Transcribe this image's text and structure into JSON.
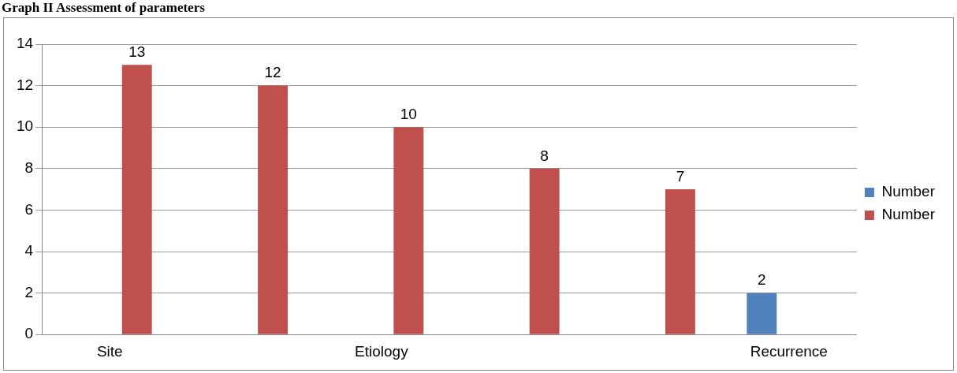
{
  "chart_data": {
    "type": "bar",
    "title": "Graph II Assessment of parameters",
    "categories": [
      "Site",
      null,
      "Etiology",
      null,
      null,
      "Recurrence"
    ],
    "series": [
      {
        "name": "Number",
        "color": "#4f81bd",
        "values": [
          0,
          0,
          0,
          0,
          0,
          2
        ],
        "value_labels": [
          null,
          null,
          null,
          null,
          null,
          "2"
        ]
      },
      {
        "name": "Number",
        "color": "#c0504d",
        "values": [
          13,
          12,
          10,
          8,
          7,
          null
        ],
        "value_labels": [
          "13",
          "12",
          "10",
          "8",
          "7",
          null
        ]
      }
    ],
    "ylim": [
      0,
      14
    ],
    "yticks": [
      0,
      2,
      4,
      6,
      8,
      10,
      12,
      14
    ],
    "grid": "y",
    "legend": "right"
  }
}
